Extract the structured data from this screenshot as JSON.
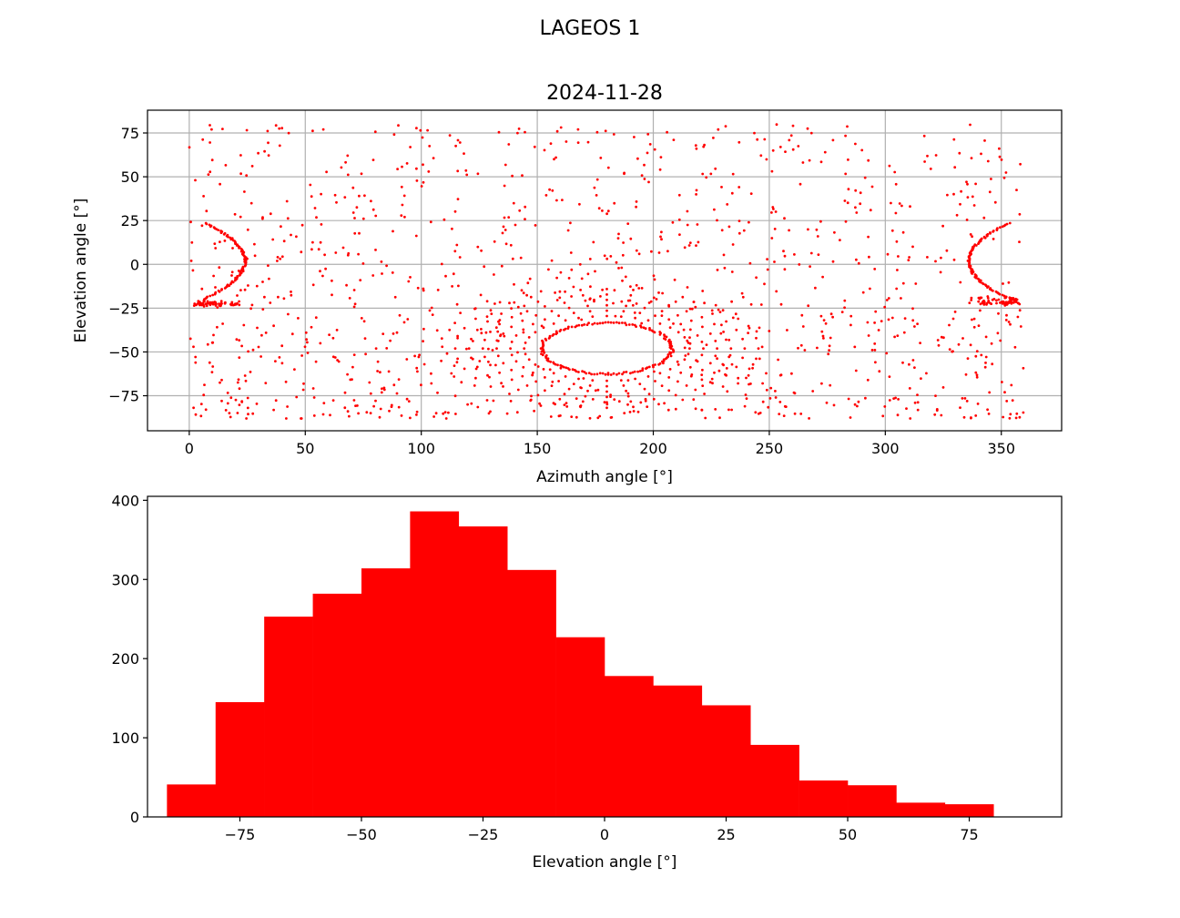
{
  "figure": {
    "suptitle": "LAGEOS 1"
  },
  "colors": {
    "marker": "#ff0000",
    "grid": "#b0b0b0",
    "axes": "#000000",
    "background": "#ffffff"
  },
  "chart_data": [
    {
      "type": "scatter",
      "title": "2024-11-28",
      "xlabel": "Azimuth angle [°]",
      "ylabel": "Elevation angle [°]",
      "xlim": [
        -18,
        376
      ],
      "ylim": [
        -95,
        88
      ],
      "xticks": [
        0,
        50,
        100,
        150,
        200,
        250,
        300,
        350
      ],
      "yticks": [
        -75,
        -50,
        -25,
        0,
        25,
        50,
        75
      ],
      "grid": true,
      "marker_color": "#ff0000",
      "point_count_estimate": 1800,
      "pattern_features": [
        {
          "name": "sparse-bottom-dome",
          "center_azimuth": 180,
          "center_elevation": -48,
          "azimuth_half_width": 27,
          "elevation_half_height": 14
        },
        {
          "name": "left-cusp",
          "azimuth": 24,
          "elevation": 2
        },
        {
          "name": "right-cusp",
          "azimuth": 336,
          "elevation": 2
        },
        {
          "name": "band-edge-low",
          "elevation": -22
        }
      ]
    },
    {
      "type": "bar",
      "subtype": "histogram",
      "title": "",
      "xlabel": "Elevation angle [°]",
      "ylabel": "",
      "xlim": [
        -94,
        94
      ],
      "ylim": [
        0,
        405
      ],
      "xticks": [
        -75,
        -50,
        -25,
        0,
        25,
        50,
        75
      ],
      "yticks": [
        0,
        100,
        200,
        300,
        400
      ],
      "grid": false,
      "bar_color": "#ff0000",
      "bin_edges": [
        -90,
        -80,
        -70,
        -60,
        -50,
        -40,
        -30,
        -20,
        -10,
        0,
        10,
        20,
        30,
        40,
        50,
        60,
        70,
        80
      ],
      "values": [
        41,
        145,
        253,
        282,
        314,
        386,
        367,
        312,
        227,
        178,
        166,
        141,
        91,
        46,
        40,
        18,
        16
      ]
    }
  ]
}
